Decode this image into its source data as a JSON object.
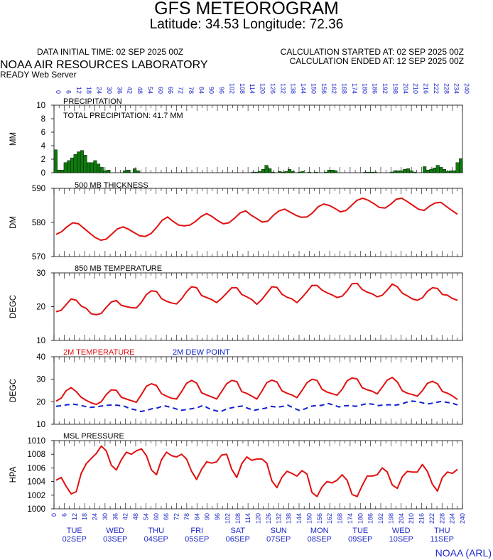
{
  "header": {
    "title": "GFS METEOROGRAM",
    "coords": "Latitude: 34.53 Longitude:  72.36",
    "initial_time": "DATA INITIAL TIME: 02 SEP 2025 00Z",
    "calc_started": "CALCULATION STARTED AT: 02 SEP 2025 00Z",
    "calc_ended": "CALCULATION ENDED AT: 12 SEP 2025 00Z",
    "lab": "NOAA AIR RESOURCES LABORATORY",
    "server": "READY Web Server"
  },
  "footer": {
    "credit": "NOAA (ARL)"
  },
  "forecast_hours": [
    0,
    6,
    12,
    18,
    24,
    30,
    36,
    42,
    48,
    54,
    60,
    66,
    72,
    78,
    84,
    90,
    96,
    102,
    108,
    114,
    120,
    126,
    132,
    138,
    144,
    150,
    156,
    162,
    168,
    174,
    180,
    186,
    192,
    198,
    204,
    210,
    216,
    222,
    228,
    234,
    240
  ],
  "hour_axis_labels": [
    "0",
    "6",
    "12",
    "18",
    "24",
    "30",
    "36",
    "42",
    "48",
    "54",
    "60",
    "66",
    "72",
    "78",
    "84",
    "90",
    "96",
    "102",
    "108",
    "114",
    "120",
    "126",
    "132",
    "138",
    "144",
    "150",
    "156",
    "162",
    "168",
    "174",
    "180",
    "186",
    "192",
    "198",
    "204",
    "210",
    "216",
    "222",
    "228",
    "234",
    "240"
  ],
  "day_labels": [
    {
      "day": "TUE",
      "date": "02SEP",
      "hour": 12
    },
    {
      "day": "WED",
      "date": "03SEP",
      "hour": 36
    },
    {
      "day": "THU",
      "date": "04SEP",
      "hour": 60
    },
    {
      "day": "FRI",
      "date": "05SEP",
      "hour": 84
    },
    {
      "day": "SAT",
      "date": "06SEP",
      "hour": 108
    },
    {
      "day": "SUN",
      "date": "07SEP",
      "hour": 132
    },
    {
      "day": "MON",
      "date": "08SEP",
      "hour": 156
    },
    {
      "day": "TUE",
      "date": "09SEP",
      "hour": 180
    },
    {
      "day": "WED",
      "date": "10SEP",
      "hour": 204
    },
    {
      "day": "THU",
      "date": "11SEP",
      "hour": 228
    }
  ],
  "colors": {
    "axis_blue": "#1d28c8",
    "precip": "#0e7a0e",
    "line_red": "#e01010",
    "dew_blue": "#1020d0"
  },
  "chart_data": [
    {
      "type": "bar",
      "title": "PRECIPITATION",
      "annotation": "TOTAL PRECIPITATION:  41.7 MM",
      "ylabel": "MM",
      "ylim": [
        0,
        10
      ],
      "yticks": [
        "0",
        "2",
        "4",
        "6",
        "8",
        "10"
      ],
      "values": [
        3.4,
        0.4,
        0.4,
        1.5,
        1.8,
        2.2,
        2.7,
        3.1,
        3.3,
        2.6,
        1.5,
        1.5,
        1.8,
        1.3,
        0.8,
        0.3,
        0.4,
        0,
        0,
        0,
        0,
        0.3,
        0.4,
        0,
        0.6,
        0.3,
        0,
        0,
        0,
        0,
        0,
        0,
        0,
        0,
        0,
        0,
        0,
        0,
        0,
        0,
        0,
        0,
        0,
        0,
        0,
        0,
        0,
        0,
        0,
        0,
        0,
        0,
        0,
        0,
        0,
        0,
        0,
        0,
        0,
        0,
        0.1,
        0.1,
        0.2,
        0.5,
        1.1,
        0.6,
        0.1,
        0,
        0.2,
        0.1,
        0.2,
        0.5,
        0.2,
        0,
        0.1,
        0.2,
        0,
        0.1,
        0,
        0.1,
        0,
        0,
        0.1,
        0.4,
        0.4,
        0.3,
        0,
        0,
        0,
        0,
        0,
        0,
        0,
        0,
        0.1,
        0.1,
        0.1,
        0.1,
        0,
        0,
        0,
        0,
        0.1,
        0.3,
        0.3,
        0.3,
        0.5,
        0.6,
        0.3,
        0.1,
        0,
        0,
        0.9,
        0.4,
        0.5,
        0.7,
        1.1,
        0.8,
        0.5,
        0.2,
        0.3,
        0.3,
        1.5,
        2.1
      ]
    },
    {
      "type": "line",
      "title": "500 MB  THICKNESS",
      "ylabel": "DM",
      "ylim": [
        570,
        590
      ],
      "yticks": [
        "570",
        "580",
        "590"
      ],
      "series": [
        {
          "values": [
            576.5,
            577.3,
            578.8,
            579.9,
            579.6,
            578.3,
            576.9,
            575.6,
            574.8,
            575.1,
            576.6,
            578.1,
            578.7,
            578.0,
            577.0,
            576.1,
            575.9,
            576.7,
            578.5,
            580.6,
            581.6,
            580.3,
            579.2,
            579.0,
            579.2,
            580.3,
            581.7,
            582.6,
            581.7,
            580.5,
            579.6,
            579.9,
            581.2,
            582.8,
            583.4,
            582.1,
            581.1,
            580.1,
            580.4,
            582.1,
            583.4,
            583.9,
            583.0,
            582.1,
            581.5,
            581.6,
            582.8,
            584.6,
            585.4,
            585.0,
            584.1,
            583.1,
            583.5,
            585.0,
            586.5,
            587.1,
            586.5,
            585.5,
            584.4,
            584.2,
            585.3,
            586.8,
            587.1,
            586.1,
            585.0,
            583.9,
            583.5,
            584.8,
            585.7,
            585.9,
            584.7,
            583.5,
            582.4
          ]
        }
      ]
    },
    {
      "type": "line",
      "title": "850 MB  TEMPERATURE",
      "ylabel": "DEGC",
      "ylim": [
        10,
        30
      ],
      "yticks": [
        "10",
        "20",
        "30"
      ],
      "series": [
        {
          "values": [
            18.5,
            18.9,
            20.6,
            22.3,
            21.9,
            20.2,
            19.5,
            17.9,
            17.6,
            18.0,
            19.8,
            21.4,
            21.8,
            20.4,
            20.0,
            19.7,
            19.6,
            21.3,
            23.6,
            24.7,
            24.5,
            22.4,
            21.6,
            21.1,
            20.8,
            22.3,
            24.4,
            25.9,
            25.6,
            23.3,
            22.7,
            22.1,
            21.2,
            22.5,
            24.0,
            25.6,
            25.6,
            23.6,
            22.9,
            22.1,
            20.7,
            22.1,
            24.0,
            25.9,
            25.7,
            23.7,
            22.8,
            22.3,
            21.2,
            22.7,
            24.4,
            26.3,
            26.3,
            24.9,
            24.1,
            23.5,
            22.7,
            23.1,
            24.7,
            26.8,
            26.9,
            25.1,
            24.3,
            23.8,
            22.9,
            23.4,
            24.9,
            26.7,
            25.9,
            24.0,
            23.2,
            22.3,
            21.9,
            22.6,
            24.5,
            25.6,
            25.4,
            23.6,
            23.4,
            22.4,
            21.9
          ]
        }
      ]
    },
    {
      "type": "line",
      "title": "2M TEMPERATURE",
      "legend": [
        "2M TEMPERATURE",
        "2M  DEW POINT"
      ],
      "ylabel": "DEGC",
      "ylim": [
        10,
        40
      ],
      "yticks": [
        "10",
        "20",
        "30",
        "40"
      ],
      "series": [
        {
          "name": "2M TEMPERATURE",
          "values": [
            20.3,
            21.6,
            24.9,
            26.3,
            24.5,
            22.0,
            20.6,
            19.5,
            18.8,
            20.0,
            23.2,
            25.3,
            25.1,
            22.0,
            21.2,
            20.5,
            19.8,
            23.2,
            26.9,
            28.0,
            27.2,
            23.6,
            22.5,
            21.6,
            21.2,
            24.5,
            28.2,
            29.5,
            28.3,
            24.0,
            23.0,
            22.2,
            21.2,
            24.6,
            28.0,
            29.5,
            29.0,
            24.5,
            23.7,
            22.5,
            21.2,
            24.7,
            28.5,
            29.6,
            28.8,
            24.9,
            23.8,
            23.0,
            21.8,
            25.0,
            28.4,
            30.0,
            29.5,
            25.6,
            24.3,
            23.6,
            22.9,
            25.5,
            29.3,
            30.6,
            30.1,
            26.3,
            25.3,
            24.7,
            23.5,
            26.5,
            29.6,
            30.8,
            28.8,
            24.9,
            23.8,
            23.2,
            22.5,
            24.9,
            28.2,
            29.1,
            28.0,
            24.6,
            23.8,
            22.6,
            21.0
          ]
        },
        {
          "name": "2M  DEW POINT",
          "values": [
            18.0,
            18.3,
            18.7,
            18.9,
            18.6,
            18.0,
            17.5,
            17.7,
            18.1,
            18.4,
            18.6,
            18.4,
            18.1,
            17.0,
            16.4,
            15.7,
            16.2,
            16.9,
            17.3,
            18.3,
            17.7,
            17.0,
            16.2,
            16.5,
            16.9,
            17.4,
            18.4,
            17.0,
            16.2,
            15.5,
            16.6,
            17.3,
            17.8,
            18.1,
            17.0,
            16.2,
            16.7,
            17.1,
            18.0,
            17.6,
            17.9,
            18.5,
            17.2,
            16.2,
            16.8,
            18.0,
            18.3,
            18.4,
            19.3,
            18.6,
            17.7,
            18.2,
            18.3,
            18.0,
            18.6,
            19.2,
            18.9,
            18.3,
            18.6,
            18.7,
            18.5,
            18.9,
            19.8,
            20.3,
            20.0,
            19.4,
            19.1,
            19.6,
            20.1,
            19.8,
            19.4,
            18.6
          ]
        }
      ]
    },
    {
      "type": "line",
      "title": "MSL PRESSURE",
      "ylabel": "HPA",
      "ylim": [
        1000,
        1010
      ],
      "yticks": [
        "1000",
        "1002",
        "1004",
        "1006",
        "1008",
        "1010"
      ],
      "series": [
        {
          "values": [
            1004.2,
            1004.6,
            1003.3,
            1002.2,
            1002.5,
            1005.2,
            1006.6,
            1007.4,
            1008.1,
            1009.2,
            1008.5,
            1006.4,
            1005.7,
            1007.2,
            1008.3,
            1008.0,
            1008.5,
            1008.8,
            1007.8,
            1005.7,
            1005.0,
            1007.2,
            1008.3,
            1007.8,
            1007.6,
            1008.0,
            1007.3,
            1005.5,
            1004.3,
            1005.8,
            1006.9,
            1006.7,
            1006.9,
            1007.9,
            1008.0,
            1005.8,
            1004.6,
            1006.6,
            1007.6,
            1007.1,
            1007.3,
            1007.3,
            1006.7,
            1004.1,
            1003.1,
            1004.6,
            1005.5,
            1005.2,
            1004.8,
            1005.6,
            1005.1,
            1002.4,
            1001.8,
            1003.2,
            1004.0,
            1003.8,
            1004.2,
            1005.0,
            1004.2,
            1002.1,
            1001.8,
            1003.4,
            1004.8,
            1004.8,
            1005.0,
            1006.0,
            1005.4,
            1003.5,
            1003.0,
            1004.7,
            1005.5,
            1005.4,
            1005.4,
            1006.5,
            1005.5,
            1003.6,
            1002.6,
            1004.6,
            1005.4,
            1005.2,
            1005.8
          ]
        }
      ]
    }
  ]
}
